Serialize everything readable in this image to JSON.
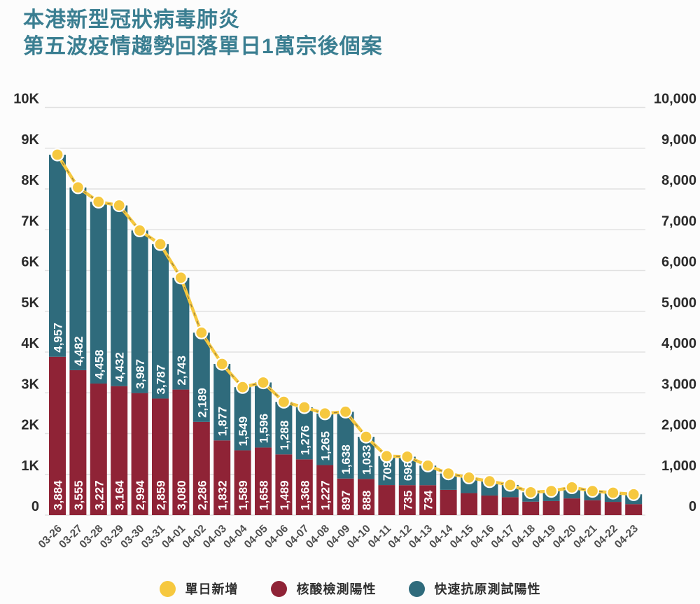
{
  "title": {
    "line1": "本港新型冠狀病毒肺炎",
    "line2": "第五波疫情趨勢回落單日1萬宗後個案"
  },
  "colors": {
    "title": "#3a7e91",
    "pcr": "#8f2336",
    "rat": "#2f6b7c",
    "daily": "#f6c83f",
    "dot_ring": "#ffffff",
    "dash_overlay": "#3a3a3a",
    "grid": "#e1e1e1",
    "axis_text": "#2b2b2b",
    "date_text": "#4f4f4f",
    "bar_label": "#ffffff",
    "background": "#fcfcfc"
  },
  "y_axis_left": {
    "ticks": [
      "10K",
      "9K",
      "8K",
      "7K",
      "6K",
      "5K",
      "4K",
      "3K",
      "2K",
      "1K",
      "0"
    ]
  },
  "y_axis_right": {
    "ticks": [
      "10,000",
      "9,000",
      "8,000",
      "7,000",
      "6,000",
      "5,000",
      "4,000",
      "3,000",
      "2,000",
      "1,000",
      "0"
    ]
  },
  "legend": {
    "items": [
      {
        "label": "單日新增",
        "color_key": "daily"
      },
      {
        "label": "核酸檢測陽性",
        "color_key": "pcr"
      },
      {
        "label": "快速抗原測試陽性",
        "color_key": "rat"
      }
    ]
  },
  "chart_data": {
    "type": "bar",
    "subtype": "stacked-with-line-overlay",
    "title": "本港新型冠狀病毒肺炎 第五波疫情趨勢回落單日1萬宗後個案",
    "xlabel": "",
    "ylabel": "",
    "ylim": [
      0,
      10000
    ],
    "grid": true,
    "legend_position": "bottom",
    "categories": [
      "03-26",
      "03-27",
      "03-28",
      "03-29",
      "03-30",
      "03-31",
      "04-01",
      "04-02",
      "04-03",
      "04-04",
      "04-05",
      "04-06",
      "04-07",
      "04-08",
      "04-09",
      "04-10",
      "04-11",
      "04-12",
      "04-13",
      "04-14",
      "04-15",
      "04-16",
      "04-17",
      "04-18",
      "04-19",
      "04-20",
      "04-21",
      "04-22",
      "04-23"
    ],
    "series": [
      {
        "name": "核酸檢測陽性",
        "color_key": "pcr",
        "values": [
          3884,
          3555,
          3227,
          3164,
          2994,
          2859,
          3080,
          2286,
          1832,
          1589,
          1658,
          1489,
          1368,
          1227,
          897,
          888,
          737,
          735,
          734,
          620,
          540,
          480,
          440,
          330,
          345,
          410,
          365,
          325,
          270
        ],
        "labels": [
          "3,884",
          "3,555",
          "3,227",
          "3,164",
          "2,994",
          "2,859",
          "3,080",
          "2,286",
          "1,832",
          "1,589",
          "1,658",
          "1,489",
          "1,368",
          "1,227",
          "897",
          "888",
          null,
          "735",
          "734",
          null,
          null,
          null,
          null,
          null,
          null,
          null,
          null,
          null,
          null
        ]
      },
      {
        "name": "快速抗原測試陽性",
        "color_key": "rat",
        "values": [
          4957,
          4482,
          4458,
          4432,
          3987,
          3787,
          2743,
          2189,
          1877,
          1549,
          1596,
          1288,
          1276,
          1265,
          1638,
          1033,
          709,
          698,
          480,
          400,
          380,
          350,
          300,
          230,
          245,
          270,
          225,
          225,
          240
        ],
        "labels": [
          "4,957",
          "4,482",
          "4,458",
          "4,432",
          "3,987",
          "3,787",
          "2,743",
          "2,189",
          "1,877",
          "1,549",
          "1,596",
          "1,288",
          "1,276",
          "1,265",
          "1,638",
          "1,033",
          "709",
          "698",
          null,
          null,
          null,
          null,
          null,
          null,
          null,
          null,
          null,
          null,
          null
        ]
      },
      {
        "name": "單日新增",
        "type": "line",
        "color_key": "daily",
        "values": "sum-of-stacked-series"
      }
    ],
    "note_estimated": "unlabeled bar values (04-11 pcr, 04-13 rat and all bars from 04-14 on) are estimated from pixel heights"
  }
}
